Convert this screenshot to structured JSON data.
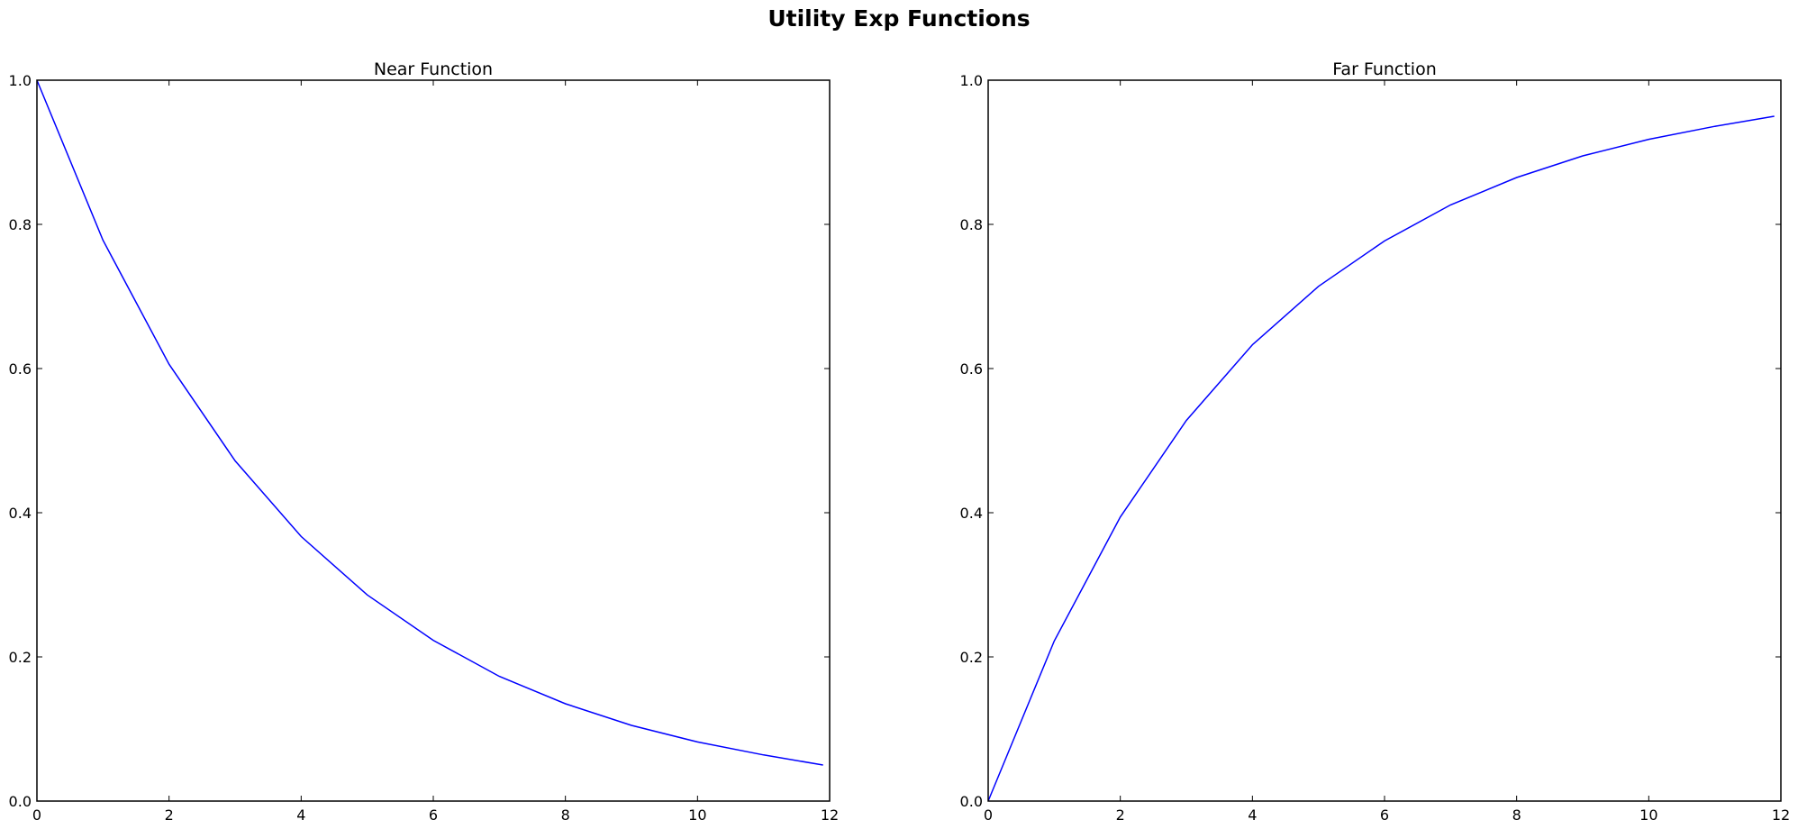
{
  "figure": {
    "suptitle": "Utility Exp Functions"
  },
  "chart_data": [
    {
      "type": "line",
      "title": "Near Function",
      "xlabel": "",
      "ylabel": "",
      "xlim": [
        0,
        12
      ],
      "ylim": [
        0,
        1.0
      ],
      "xticks": [
        "0",
        "2",
        "4",
        "6",
        "8",
        "10",
        "12"
      ],
      "yticks": [
        "0.0",
        "0.2",
        "0.4",
        "0.6",
        "0.8",
        "1.0"
      ],
      "grid": false,
      "series": [
        {
          "color": "#0000ff",
          "x": [
            0,
            1,
            2,
            3,
            4,
            5,
            6,
            7,
            8,
            9,
            10,
            11,
            11.9
          ],
          "y": [
            1.0,
            0.778,
            0.606,
            0.472,
            0.367,
            0.286,
            0.223,
            0.173,
            0.135,
            0.105,
            0.082,
            0.064,
            0.05
          ]
        }
      ]
    },
    {
      "type": "line",
      "title": "Far Function",
      "xlabel": "",
      "ylabel": "",
      "xlim": [
        0,
        12
      ],
      "ylim": [
        0,
        1.0
      ],
      "xticks": [
        "0",
        "2",
        "4",
        "6",
        "8",
        "10",
        "12"
      ],
      "yticks": [
        "0.0",
        "0.2",
        "0.4",
        "0.6",
        "0.8",
        "1.0"
      ],
      "grid": false,
      "series": [
        {
          "color": "#0000ff",
          "x": [
            0,
            1,
            2,
            3,
            4,
            5,
            6,
            7,
            8,
            9,
            10,
            11,
            11.9
          ],
          "y": [
            0.0,
            0.222,
            0.394,
            0.528,
            0.633,
            0.714,
            0.777,
            0.827,
            0.865,
            0.895,
            0.918,
            0.936,
            0.95
          ]
        }
      ]
    }
  ]
}
